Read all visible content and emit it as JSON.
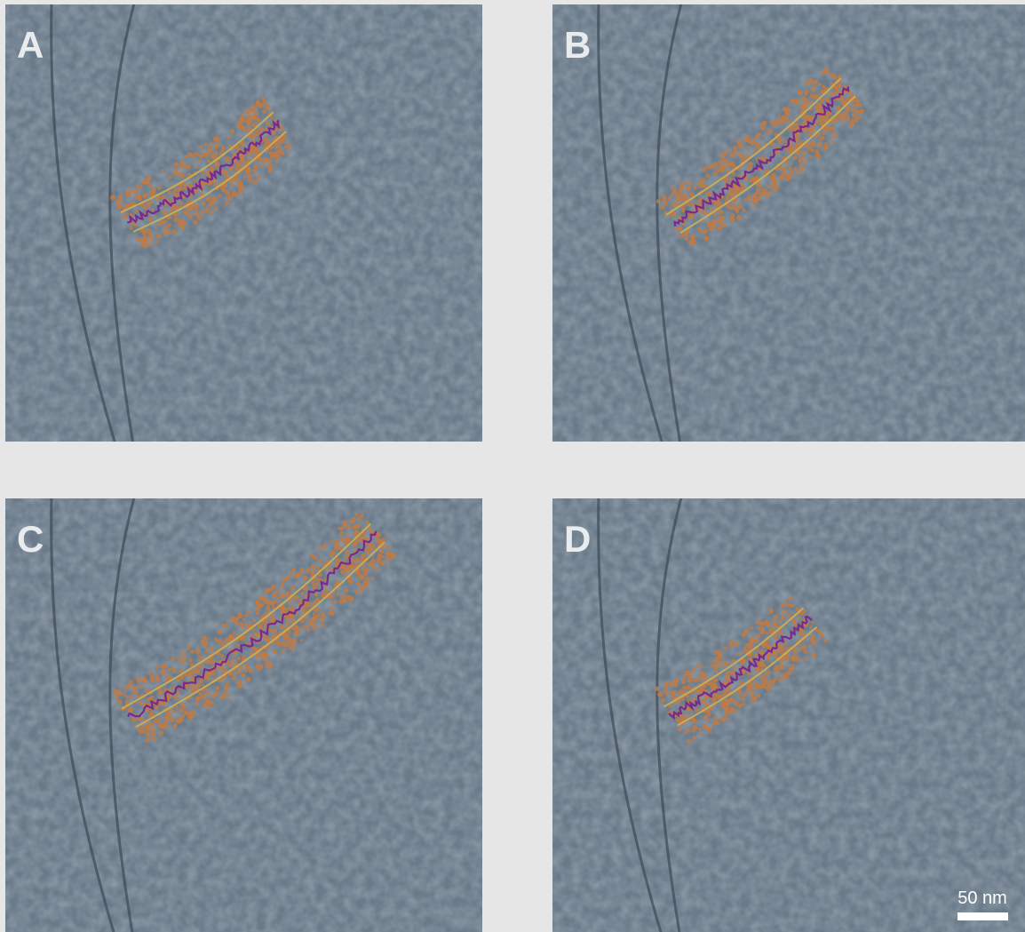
{
  "panels": [
    {
      "label": "A"
    },
    {
      "label": "B"
    },
    {
      "label": "C"
    },
    {
      "label": "D"
    }
  ],
  "scale_bar": {
    "label": "50 nm"
  }
}
